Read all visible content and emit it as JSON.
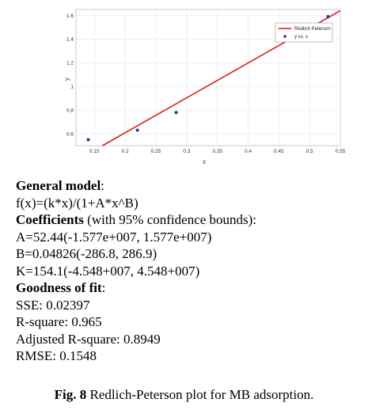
{
  "chart_data": {
    "type": "scatter",
    "xlabel": "x",
    "ylabel": "y",
    "xlim": [
      0.12,
      0.55
    ],
    "ylim": [
      0.5,
      1.65
    ],
    "xticks": [
      "0.15",
      "0.2",
      "0.25",
      "0.3",
      "0.35",
      "0.4",
      "0.45",
      "0.5",
      "0.55"
    ],
    "xtick_values": [
      0.15,
      0.2,
      0.25,
      0.3,
      0.35,
      0.4,
      0.45,
      0.5,
      0.55
    ],
    "yticks": [
      "0.6",
      "0.8",
      "1",
      "1.2",
      "1.4",
      "1.6"
    ],
    "ytick_values": [
      0.6,
      0.8,
      1.0,
      1.2,
      1.4,
      1.6
    ],
    "grid": true,
    "legend_position": "top-right",
    "series": [
      {
        "name": "y vs. x",
        "kind": "points",
        "color": "#1f3a8a",
        "x": [
          0.14,
          0.22,
          0.283,
          0.53
        ],
        "y": [
          0.55,
          0.63,
          0.78,
          1.59
        ]
      },
      {
        "name": "Redlich Peterson",
        "kind": "line",
        "color": "#e02020",
        "x": [
          0.163,
          0.55
        ],
        "y": [
          0.5,
          1.64
        ]
      }
    ]
  },
  "text": {
    "general_model_label": "General model",
    "general_model_colon": ":",
    "equation": "f(x)=(k*x)/(1+A*x^B)",
    "coefficients_label": "Coefficients",
    "coefficients_rest": " (with 95% confidence bounds):",
    "coef_a": "A=52.44(-1.577e+007, 1.577e+007)",
    "coef_b": "B=0.04826(-286.8, 286.9)",
    "coef_k": "K=154.1(-4.548+007, 4.548+007)",
    "goodness_label": "Goodness of fit",
    "goodness_colon": ":",
    "sse": "SSE: 0.02397",
    "rsquare": "R-square: 0.965",
    "adj_rsquare": "Adjusted R-square: 0.8949",
    "rmse": "RMSE: 0.1548"
  },
  "caption": {
    "label": "Fig. 8",
    "text": " Redlich-Peterson plot for MB adsorption."
  }
}
